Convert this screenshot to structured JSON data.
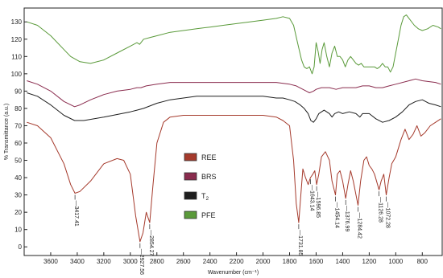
{
  "chart_data": {
    "type": "line",
    "title": "",
    "xlabel": "Wavenumber (cm⁻¹)",
    "ylabel": "% Transmittance (a.u.)",
    "xlim": [
      3800,
      650
    ],
    "ylim": [
      -5,
      138
    ],
    "x_ticks": [
      3600,
      3400,
      3200,
      3000,
      2800,
      2600,
      2400,
      2200,
      2000,
      1800,
      1600,
      1400,
      1200,
      1000,
      800
    ],
    "y_ticks": [
      0,
      10,
      20,
      30,
      40,
      50,
      60,
      70,
      80,
      90,
      100,
      110,
      120,
      130
    ],
    "legend_position": "center",
    "series": [
      {
        "name": "REE",
        "color": "#a53a2c",
        "points": [
          [
            3780,
            72
          ],
          [
            3700,
            70
          ],
          [
            3600,
            63
          ],
          [
            3500,
            48
          ],
          [
            3450,
            36
          ],
          [
            3417,
            31
          ],
          [
            3380,
            32
          ],
          [
            3300,
            38
          ],
          [
            3200,
            48
          ],
          [
            3100,
            51
          ],
          [
            3050,
            50
          ],
          [
            3000,
            42
          ],
          [
            2960,
            18
          ],
          [
            2927,
            3
          ],
          [
            2905,
            8
          ],
          [
            2880,
            20
          ],
          [
            2854,
            14
          ],
          [
            2830,
            35
          ],
          [
            2800,
            60
          ],
          [
            2750,
            72
          ],
          [
            2700,
            75
          ],
          [
            2600,
            76
          ],
          [
            2500,
            76
          ],
          [
            2400,
            76
          ],
          [
            2300,
            76
          ],
          [
            2200,
            76
          ],
          [
            2100,
            76
          ],
          [
            2000,
            76
          ],
          [
            1900,
            75
          ],
          [
            1850,
            73
          ],
          [
            1800,
            70
          ],
          [
            1770,
            50
          ],
          [
            1750,
            25
          ],
          [
            1731,
            14
          ],
          [
            1715,
            30
          ],
          [
            1700,
            45
          ],
          [
            1680,
            40
          ],
          [
            1660,
            36
          ],
          [
            1643,
            40
          ],
          [
            1625,
            42
          ],
          [
            1610,
            44
          ],
          [
            1596,
            36
          ],
          [
            1580,
            42
          ],
          [
            1560,
            52
          ],
          [
            1530,
            55
          ],
          [
            1500,
            50
          ],
          [
            1480,
            38
          ],
          [
            1454,
            30
          ],
          [
            1440,
            42
          ],
          [
            1420,
            44
          ],
          [
            1400,
            38
          ],
          [
            1377,
            28
          ],
          [
            1360,
            36
          ],
          [
            1340,
            44
          ],
          [
            1320,
            38
          ],
          [
            1284,
            24
          ],
          [
            1265,
            38
          ],
          [
            1240,
            50
          ],
          [
            1220,
            52
          ],
          [
            1200,
            47
          ],
          [
            1180,
            45
          ],
          [
            1160,
            42
          ],
          [
            1126,
            33
          ],
          [
            1110,
            38
          ],
          [
            1090,
            42
          ],
          [
            1072,
            30
          ],
          [
            1050,
            40
          ],
          [
            1030,
            48
          ],
          [
            1000,
            52
          ],
          [
            960,
            62
          ],
          [
            930,
            68
          ],
          [
            900,
            62
          ],
          [
            870,
            65
          ],
          [
            840,
            70
          ],
          [
            810,
            64
          ],
          [
            780,
            66
          ],
          [
            740,
            70
          ],
          [
            700,
            72
          ],
          [
            660,
            74
          ]
        ]
      },
      {
        "name": "BRS",
        "color": "#8a2c4e",
        "points": [
          [
            3780,
            96
          ],
          [
            3700,
            94
          ],
          [
            3600,
            90
          ],
          [
            3500,
            84
          ],
          [
            3420,
            81
          ],
          [
            3380,
            82
          ],
          [
            3300,
            85
          ],
          [
            3200,
            88
          ],
          [
            3100,
            90
          ],
          [
            3000,
            91
          ],
          [
            2950,
            92
          ],
          [
            2920,
            92
          ],
          [
            2880,
            93
          ],
          [
            2800,
            94
          ],
          [
            2700,
            95
          ],
          [
            2600,
            95
          ],
          [
            2500,
            95
          ],
          [
            2400,
            95
          ],
          [
            2300,
            95
          ],
          [
            2200,
            95
          ],
          [
            2100,
            95
          ],
          [
            2000,
            95
          ],
          [
            1900,
            95
          ],
          [
            1800,
            94
          ],
          [
            1750,
            93
          ],
          [
            1700,
            91
          ],
          [
            1650,
            89
          ],
          [
            1620,
            90
          ],
          [
            1600,
            91
          ],
          [
            1560,
            92
          ],
          [
            1500,
            92
          ],
          [
            1450,
            91
          ],
          [
            1400,
            92
          ],
          [
            1350,
            92
          ],
          [
            1300,
            92
          ],
          [
            1250,
            93
          ],
          [
            1200,
            93
          ],
          [
            1150,
            92
          ],
          [
            1100,
            92
          ],
          [
            1050,
            93
          ],
          [
            1000,
            94
          ],
          [
            900,
            96
          ],
          [
            850,
            97
          ],
          [
            800,
            96
          ],
          [
            700,
            95
          ],
          [
            660,
            94
          ]
        ]
      },
      {
        "name": "T2",
        "color": "#1e1e1e",
        "points": [
          [
            3780,
            89
          ],
          [
            3700,
            87
          ],
          [
            3600,
            82
          ],
          [
            3500,
            76
          ],
          [
            3420,
            73
          ],
          [
            3350,
            73
          ],
          [
            3200,
            75
          ],
          [
            3000,
            78
          ],
          [
            2950,
            79
          ],
          [
            2900,
            80
          ],
          [
            2800,
            83
          ],
          [
            2700,
            85
          ],
          [
            2600,
            86
          ],
          [
            2500,
            87
          ],
          [
            2400,
            87
          ],
          [
            2300,
            87
          ],
          [
            2200,
            87
          ],
          [
            2100,
            87
          ],
          [
            2000,
            87
          ],
          [
            1900,
            86
          ],
          [
            1850,
            86
          ],
          [
            1800,
            85
          ],
          [
            1760,
            84
          ],
          [
            1720,
            82
          ],
          [
            1690,
            80
          ],
          [
            1660,
            77
          ],
          [
            1640,
            73
          ],
          [
            1620,
            72
          ],
          [
            1600,
            74
          ],
          [
            1580,
            77
          ],
          [
            1540,
            79
          ],
          [
            1500,
            77
          ],
          [
            1480,
            75
          ],
          [
            1460,
            77
          ],
          [
            1430,
            78
          ],
          [
            1400,
            77
          ],
          [
            1350,
            78
          ],
          [
            1300,
            77
          ],
          [
            1270,
            75
          ],
          [
            1250,
            77
          ],
          [
            1200,
            77
          ],
          [
            1150,
            74
          ],
          [
            1100,
            72
          ],
          [
            1050,
            73
          ],
          [
            1000,
            75
          ],
          [
            950,
            78
          ],
          [
            900,
            82
          ],
          [
            850,
            84
          ],
          [
            800,
            85
          ],
          [
            750,
            83
          ],
          [
            700,
            82
          ],
          [
            660,
            81
          ]
        ]
      },
      {
        "name": "PFE",
        "color": "#5a9a3a",
        "points": [
          [
            3780,
            130
          ],
          [
            3700,
            128
          ],
          [
            3600,
            122
          ],
          [
            3500,
            114
          ],
          [
            3450,
            110
          ],
          [
            3380,
            107
          ],
          [
            3300,
            106
          ],
          [
            3200,
            108
          ],
          [
            3100,
            112
          ],
          [
            3000,
            116
          ],
          [
            2950,
            118
          ],
          [
            2930,
            117
          ],
          [
            2900,
            120
          ],
          [
            2850,
            121
          ],
          [
            2800,
            122
          ],
          [
            2700,
            124
          ],
          [
            2600,
            125
          ],
          [
            2500,
            126
          ],
          [
            2400,
            127
          ],
          [
            2300,
            128
          ],
          [
            2200,
            129
          ],
          [
            2100,
            130
          ],
          [
            2000,
            131
          ],
          [
            1900,
            132
          ],
          [
            1850,
            133
          ],
          [
            1800,
            132
          ],
          [
            1770,
            128
          ],
          [
            1740,
            118
          ],
          [
            1710,
            108
          ],
          [
            1690,
            104
          ],
          [
            1670,
            103
          ],
          [
            1650,
            104
          ],
          [
            1630,
            100
          ],
          [
            1615,
            104
          ],
          [
            1600,
            118
          ],
          [
            1585,
            113
          ],
          [
            1570,
            106
          ],
          [
            1555,
            114
          ],
          [
            1540,
            118
          ],
          [
            1520,
            110
          ],
          [
            1500,
            104
          ],
          [
            1480,
            112
          ],
          [
            1460,
            116
          ],
          [
            1440,
            110
          ],
          [
            1420,
            110
          ],
          [
            1400,
            108
          ],
          [
            1380,
            104
          ],
          [
            1360,
            108
          ],
          [
            1340,
            110
          ],
          [
            1320,
            108
          ],
          [
            1300,
            106
          ],
          [
            1280,
            105
          ],
          [
            1260,
            106
          ],
          [
            1240,
            104
          ],
          [
            1220,
            104
          ],
          [
            1200,
            104
          ],
          [
            1180,
            104
          ],
          [
            1160,
            104
          ],
          [
            1140,
            103
          ],
          [
            1120,
            104
          ],
          [
            1100,
            106
          ],
          [
            1080,
            104
          ],
          [
            1060,
            104
          ],
          [
            1040,
            101
          ],
          [
            1020,
            104
          ],
          [
            1000,
            112
          ],
          [
            980,
            120
          ],
          [
            960,
            128
          ],
          [
            940,
            133
          ],
          [
            920,
            134
          ],
          [
            900,
            132
          ],
          [
            860,
            128
          ],
          [
            830,
            126
          ],
          [
            800,
            125
          ],
          [
            760,
            126
          ],
          [
            720,
            128
          ],
          [
            680,
            127
          ],
          [
            660,
            126
          ]
        ]
      }
    ],
    "annotations": [
      {
        "label": "3417.41",
        "x": 3417,
        "y": 31
      },
      {
        "label": "2927.56",
        "x": 2927,
        "y": 3
      },
      {
        "label": "2854.27",
        "x": 2854,
        "y": 14
      },
      {
        "label": "1731.85",
        "x": 1731,
        "y": 14
      },
      {
        "label": "1643.14",
        "x": 1643,
        "y": 40
      },
      {
        "label": "1596.85",
        "x": 1596,
        "y": 36
      },
      {
        "label": "1454.14",
        "x": 1454,
        "y": 30
      },
      {
        "label": "1376.99",
        "x": 1377,
        "y": 28
      },
      {
        "label": "1284.42",
        "x": 1284,
        "y": 24
      },
      {
        "label": "1126.28",
        "x": 1126,
        "y": 33
      },
      {
        "label": "1072.28",
        "x": 1072,
        "y": 30
      }
    ]
  }
}
